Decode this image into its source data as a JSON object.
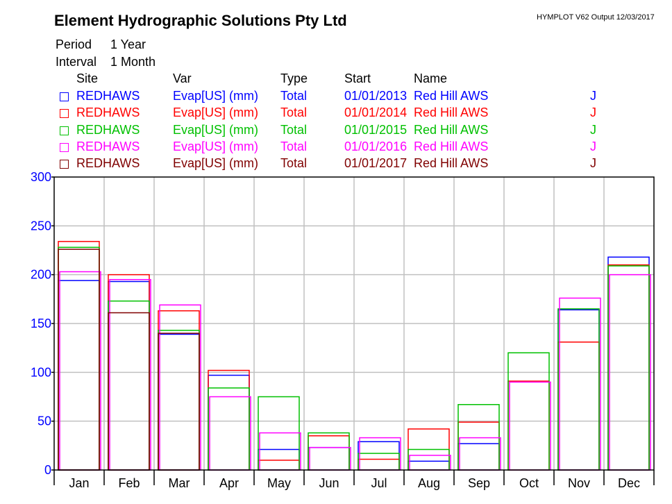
{
  "header": {
    "title": "Element Hydrographic Solutions Pty Ltd",
    "version": "HYMPLOT V62  Output 12/03/2017",
    "period_label": "Period",
    "period_value": "1 Year",
    "interval_label": "Interval",
    "interval_value": "1 Month"
  },
  "legend": {
    "columns": [
      "Site",
      "Var",
      "Type",
      "Start",
      "Name"
    ],
    "rows": [
      {
        "site": "REDHAWS",
        "var": "Evap[US] (mm)",
        "type": "Total",
        "start": "01/01/2013",
        "name": "Red Hill AWS",
        "flag": "J",
        "color": "#0000ff"
      },
      {
        "site": "REDHAWS",
        "var": "Evap[US] (mm)",
        "type": "Total",
        "start": "01/01/2014",
        "name": "Red Hill AWS",
        "flag": "J",
        "color": "#ff0000"
      },
      {
        "site": "REDHAWS",
        "var": "Evap[US] (mm)",
        "type": "Total",
        "start": "01/01/2015",
        "name": "Red Hill AWS",
        "flag": "J",
        "color": "#00c000"
      },
      {
        "site": "REDHAWS",
        "var": "Evap[US] (mm)",
        "type": "Total",
        "start": "01/01/2016",
        "name": "Red Hill AWS",
        "flag": "J",
        "color": "#ff00ff"
      },
      {
        "site": "REDHAWS",
        "var": "Evap[US] (mm)",
        "type": "Total",
        "start": "01/01/2017",
        "name": "Red Hill AWS",
        "flag": "J",
        "color": "#800000"
      }
    ]
  },
  "chart_data": {
    "type": "bar",
    "grid": true,
    "ylim": [
      0,
      300
    ],
    "yticks": [
      0,
      50,
      100,
      150,
      200,
      250,
      300
    ],
    "categories": [
      "Jan",
      "Feb",
      "Mar",
      "Apr",
      "May",
      "Jun",
      "Jul",
      "Aug",
      "Sep",
      "Oct",
      "Nov",
      "Dec"
    ],
    "series": [
      {
        "name": "01/01/2013",
        "color": "#0000ff",
        "values": [
          194,
          193,
          139,
          97,
          21,
          23,
          29,
          9,
          27,
          null,
          164,
          218
        ]
      },
      {
        "name": "01/01/2014",
        "color": "#ff0000",
        "values": [
          234,
          200,
          163,
          102,
          10,
          35,
          11,
          42,
          49,
          91,
          131,
          210
        ]
      },
      {
        "name": "01/01/2015",
        "color": "#00c000",
        "values": [
          228,
          173,
          143,
          84,
          75,
          38,
          17,
          21,
          67,
          120,
          165,
          209
        ]
      },
      {
        "name": "01/01/2016",
        "color": "#ff00ff",
        "values": [
          203,
          195,
          169,
          75,
          38,
          23,
          33,
          15,
          33,
          90,
          176,
          200
        ]
      },
      {
        "name": "01/01/2017",
        "color": "#800000",
        "values": [
          226,
          161,
          140,
          null,
          null,
          null,
          null,
          null,
          null,
          null,
          null,
          null
        ]
      }
    ]
  }
}
